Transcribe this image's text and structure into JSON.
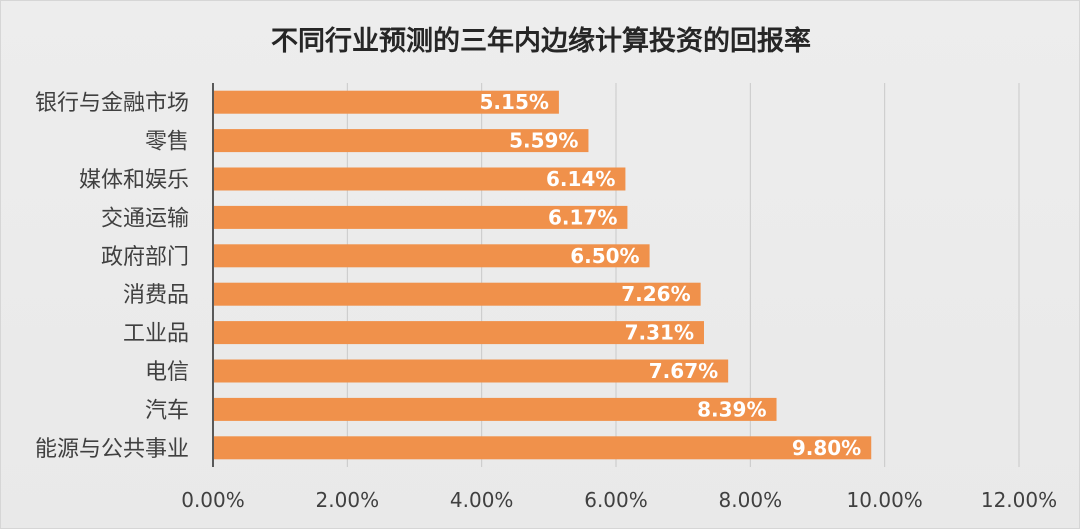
{
  "chart_data": {
    "type": "bar",
    "orientation": "horizontal",
    "title": "不同行业预测的三年内边缘计算投资的回报率",
    "categories": [
      "银行与金融市场",
      "零售",
      "媒体和娱乐",
      "交通运输",
      "政府部门",
      "消费品",
      "工业品",
      "电信",
      "汽车",
      "能源与公共事业"
    ],
    "values": [
      5.15,
      5.59,
      6.14,
      6.17,
      6.5,
      7.26,
      7.31,
      7.67,
      8.39,
      9.8
    ],
    "data_labels": [
      "5.15%",
      "5.59%",
      "6.14%",
      "6.17%",
      "6.50%",
      "7.26%",
      "7.31%",
      "7.67%",
      "8.39%",
      "9.80%"
    ],
    "x_ticks": [
      "0.00%",
      "2.00%",
      "4.00%",
      "6.00%",
      "8.00%",
      "10.00%",
      "12.00%"
    ],
    "xlim": [
      0,
      12
    ],
    "xlabel": "",
    "ylabel": "",
    "grid": "vertical",
    "bar_color": "#F0914B",
    "legend": "none"
  }
}
